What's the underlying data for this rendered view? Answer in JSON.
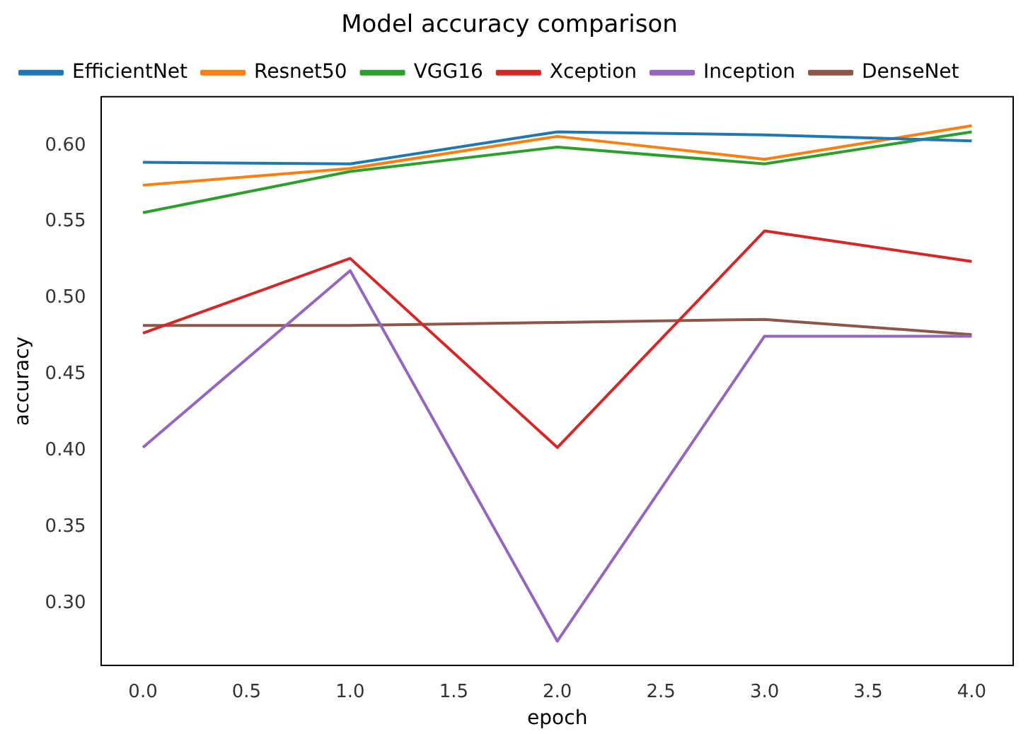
{
  "chart_data": {
    "type": "line",
    "title": "Model accuracy comparison",
    "xlabel": "epoch",
    "ylabel": "accuracy",
    "x": [
      0,
      1,
      2,
      3,
      4
    ],
    "xlim": [
      -0.2,
      4.2
    ],
    "xticks": [
      {
        "value": 0,
        "label": "0.0"
      },
      {
        "value": 0.5,
        "label": "0.5"
      },
      {
        "value": 1,
        "label": "1.0"
      },
      {
        "value": 1.5,
        "label": "1.5"
      },
      {
        "value": 2,
        "label": "2.0"
      },
      {
        "value": 2.5,
        "label": "2.5"
      },
      {
        "value": 3,
        "label": "3.0"
      },
      {
        "value": 3.5,
        "label": "3.5"
      },
      {
        "value": 4,
        "label": "4.0"
      }
    ],
    "ylim": [
      0.259,
      0.632
    ],
    "yticks": [
      {
        "value": 0.3,
        "label": "0.30"
      },
      {
        "value": 0.35,
        "label": "0.35"
      },
      {
        "value": 0.4,
        "label": "0.40"
      },
      {
        "value": 0.45,
        "label": "0.45"
      },
      {
        "value": 0.5,
        "label": "0.50"
      },
      {
        "value": 0.55,
        "label": "0.55"
      },
      {
        "value": 0.6,
        "label": "0.60"
      }
    ],
    "grid": false,
    "legend": "top left",
    "marker": "none",
    "line_style": "solid",
    "series": [
      {
        "name": "EfficientNet",
        "color": "#1f77b4",
        "values": [
          0.589,
          0.588,
          0.609,
          0.607,
          0.603
        ]
      },
      {
        "name": "Resnet50",
        "color": "#ff7f0e",
        "values": [
          0.574,
          0.585,
          0.606,
          0.591,
          0.613
        ]
      },
      {
        "name": "VGG16",
        "color": "#2ca02c",
        "values": [
          0.556,
          0.583,
          0.599,
          0.588,
          0.609
        ]
      },
      {
        "name": "Xception",
        "color": "#d62728",
        "values": [
          0.477,
          0.526,
          0.402,
          0.544,
          0.524
        ]
      },
      {
        "name": "Inception",
        "color": "#9467bd",
        "values": [
          0.402,
          0.518,
          0.275,
          0.475,
          0.475
        ]
      },
      {
        "name": "DenseNet",
        "color": "#8c564b",
        "values": [
          0.482,
          0.482,
          0.484,
          0.486,
          0.476
        ]
      }
    ]
  }
}
